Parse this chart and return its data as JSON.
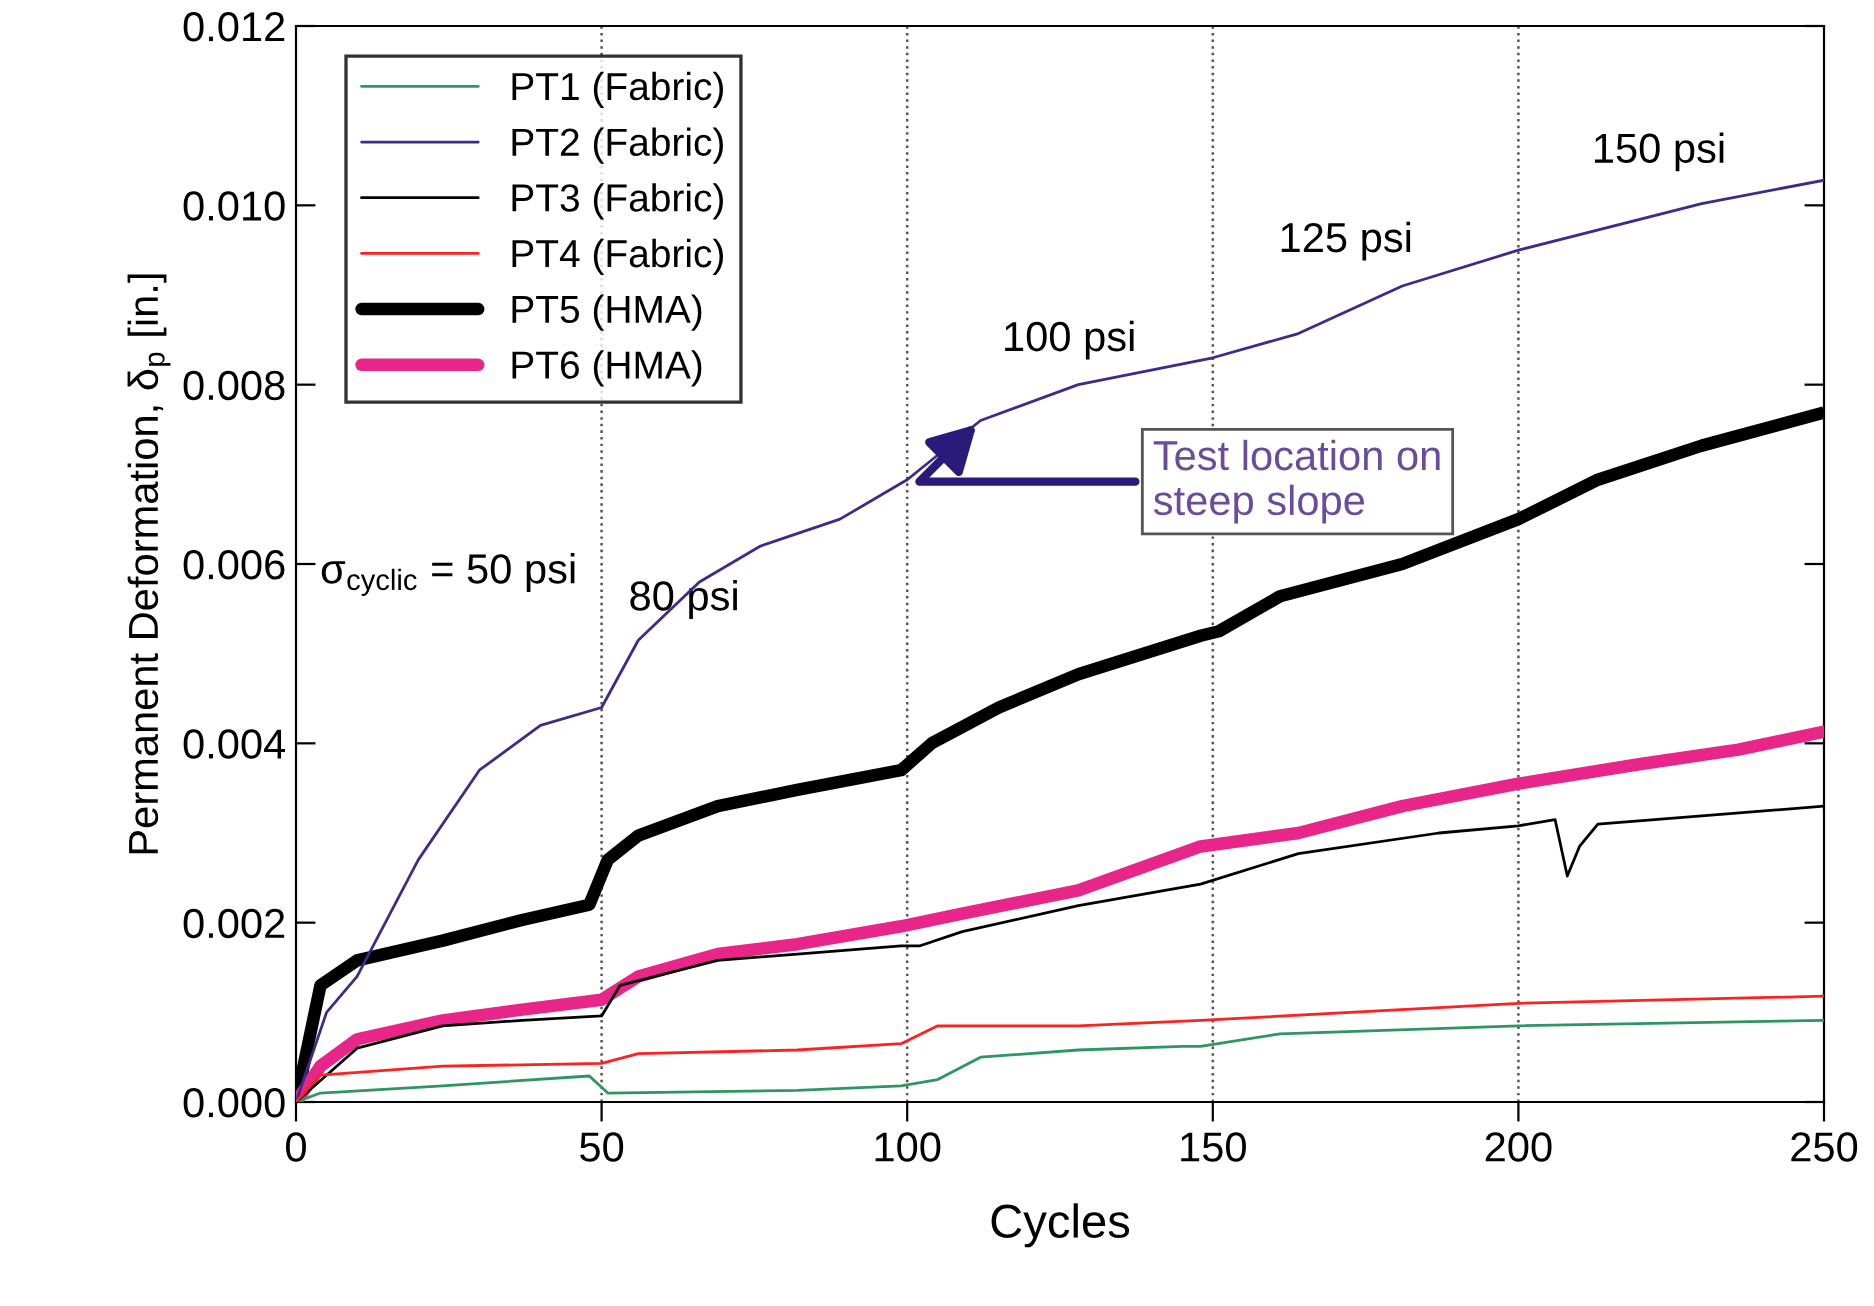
{
  "chart_data": {
    "type": "line",
    "xlabel": "Cycles",
    "ylabel": "Permanent Deformation, δ$_{p}$ [in.]",
    "xlim": [
      0,
      250
    ],
    "ylim": [
      0,
      0.012
    ],
    "xticks": [
      0,
      50,
      100,
      150,
      200,
      250
    ],
    "yticks": [
      {
        "value": 0,
        "label": "0.000"
      },
      {
        "value": 0.002,
        "label": "0.002"
      },
      {
        "value": 0.004,
        "label": "0.004"
      },
      {
        "value": 0.006,
        "label": "0.006"
      },
      {
        "value": 0.008,
        "label": "0.008"
      },
      {
        "value": 0.01,
        "label": "0.010"
      },
      {
        "value": 0.012,
        "label": "0.012"
      }
    ],
    "grid": false,
    "legend": "top left",
    "line_style": "solid",
    "marker": "none",
    "ref_lines": [
      {
        "axis": "x",
        "value": 50,
        "line_style": "dotted",
        "color": "#555555"
      },
      {
        "axis": "x",
        "value": 100,
        "line_style": "dotted",
        "color": "#555555"
      },
      {
        "axis": "x",
        "value": 150,
        "line_style": "dotted",
        "color": "#555555"
      },
      {
        "axis": "x",
        "value": 200,
        "line_style": "dotted",
        "color": "#555555"
      }
    ],
    "annotations": [
      "σ$_{cyclic}$ = 50 psi",
      "80 psi",
      "100 psi",
      "125 psi",
      "150 psi",
      {
        "text": "Test location on\nsteep slope",
        "x": 112,
        "y": 0.0076
      }
    ],
    "series": [
      {
        "name": "PT1 (Fabric)",
        "color": "#2e9660",
        "x": [
          0,
          4,
          24,
          48,
          51,
          82,
          99,
          105,
          112,
          128,
          145,
          148,
          161,
          200,
          250
        ],
        "values": [
          0,
          0.0001,
          0.00018,
          0.00029,
          0.0001,
          0.00013,
          0.00018,
          0.00025,
          0.0005,
          0.00058,
          0.00062,
          0.00062,
          0.00076,
          0.00085,
          0.00091
        ]
      },
      {
        "name": "PT2 (Fabric)",
        "color": "#3f2a8c",
        "x": [
          0,
          5,
          10,
          20,
          30,
          40,
          50,
          56,
          66,
          76,
          89,
          99,
          100,
          112,
          128,
          150,
          164,
          181,
          200,
          230,
          250
        ],
        "values": [
          0,
          0.001,
          0.0014,
          0.0027,
          0.0037,
          0.0042,
          0.0044,
          0.00515,
          0.0058,
          0.0062,
          0.0065,
          0.0069,
          0.00694,
          0.0076,
          0.008,
          0.0083,
          0.00857,
          0.0091,
          0.0095,
          0.01002,
          0.01028
        ]
      },
      {
        "name": "PT3 (Fabric)",
        "color": "#000000",
        "x": [
          0,
          10,
          24,
          37,
          50,
          53,
          69,
          82,
          99,
          102,
          109,
          128,
          148,
          164,
          187,
          200,
          206,
          208,
          210,
          213,
          230,
          250
        ],
        "values": [
          0,
          0.0006,
          0.00085,
          0.00091,
          0.00096,
          0.0013,
          0.00158,
          0.00165,
          0.00174,
          0.00174,
          0.0019,
          0.00219,
          0.00243,
          0.00277,
          0.003,
          0.00308,
          0.00315,
          0.00252,
          0.00285,
          0.0031,
          0.00319,
          0.0033
        ]
      },
      {
        "name": "PT4 (Fabric)",
        "color": "#ff2020",
        "x": [
          0,
          4,
          24,
          50,
          56,
          82,
          99,
          105,
          128,
          148,
          200,
          250
        ],
        "values": [
          0,
          0.0003,
          0.0004,
          0.00043,
          0.00054,
          0.00058,
          0.00065,
          0.00085,
          0.00085,
          0.00091,
          0.0011,
          0.00118
        ]
      },
      {
        "name": "PT5 (HMA)",
        "color": "#000000",
        "x": [
          0,
          4,
          10,
          24,
          37,
          48,
          51,
          56,
          69,
          82,
          99,
          104,
          115,
          128,
          148,
          151,
          161,
          181,
          200,
          213,
          230,
          249
        ],
        "values": [
          0,
          0.0013,
          0.00158,
          0.0018,
          0.00203,
          0.0022,
          0.0027,
          0.00297,
          0.0033,
          0.00348,
          0.0037,
          0.004,
          0.0044,
          0.00477,
          0.0052,
          0.00525,
          0.00564,
          0.006,
          0.0065,
          0.00694,
          0.00732,
          0.00767
        ]
      },
      {
        "name": "PT6 (HMA)",
        "color": "#e8268a",
        "x": [
          0,
          4,
          10,
          24,
          37,
          50,
          56,
          69,
          82,
          99,
          109,
          128,
          148,
          164,
          181,
          200,
          220,
          236,
          250
        ],
        "values": [
          0,
          0.0004,
          0.0007,
          0.00091,
          0.00103,
          0.00114,
          0.0014,
          0.00165,
          0.00176,
          0.00196,
          0.0021,
          0.00236,
          0.00285,
          0.003,
          0.0033,
          0.00355,
          0.00377,
          0.00393,
          0.00413
        ]
      }
    ]
  }
}
